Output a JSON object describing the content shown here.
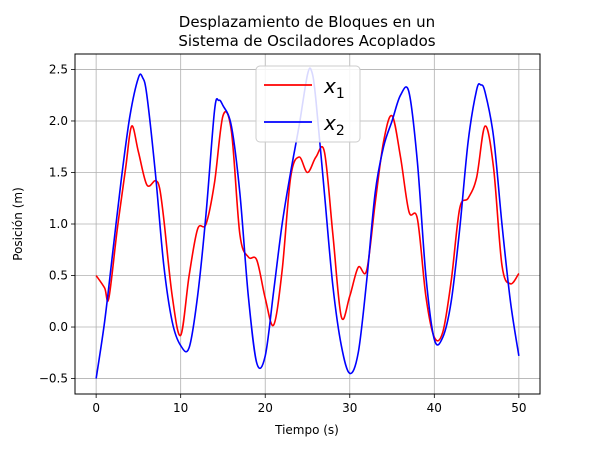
{
  "chart_data": {
    "type": "line",
    "title_lines": [
      "Desplazamiento de Bloques en un",
      "Sistema de Osciladores Acoplados"
    ],
    "xlabel": "Tiempo (s)",
    "ylabel": "Posición (m)",
    "xlim": [
      -2.5,
      52.5
    ],
    "ylim": [
      -0.65,
      2.65
    ],
    "xticks": [
      0,
      10,
      20,
      30,
      40,
      50
    ],
    "xtick_labels": [
      "0",
      "10",
      "20",
      "30",
      "40",
      "50"
    ],
    "yticks": [
      -0.5,
      0.0,
      0.5,
      1.0,
      1.5,
      2.0,
      2.5
    ],
    "ytick_labels": [
      "−0.5",
      "0.0",
      "0.5",
      "1.0",
      "1.5",
      "2.0",
      "2.5"
    ],
    "grid": true,
    "legend_placement": "top-center",
    "series": [
      {
        "name": "x",
        "name_sub": "1",
        "color": "#ff0000",
        "x": [
          0,
          1,
          1.5,
          2.5,
          3.5,
          4.2,
          5,
          6,
          7,
          7.5,
          8,
          9,
          10,
          11,
          12,
          13,
          14,
          15,
          16,
          17,
          18,
          19,
          20,
          21,
          22,
          23,
          24,
          25,
          26,
          27,
          28,
          29,
          30,
          31,
          32,
          33,
          34,
          35,
          36,
          37,
          38,
          39,
          40,
          41,
          42,
          43,
          44,
          45,
          46,
          47,
          48,
          49,
          50
        ],
        "y": [
          0.5,
          0.38,
          0.28,
          0.95,
          1.55,
          1.95,
          1.7,
          1.38,
          1.42,
          1.35,
          1.05,
          0.3,
          -0.08,
          0.5,
          0.95,
          1.0,
          1.4,
          2.05,
          1.9,
          0.9,
          0.68,
          0.65,
          0.28,
          0.02,
          0.55,
          1.45,
          1.65,
          1.5,
          1.65,
          1.7,
          0.9,
          0.1,
          0.3,
          0.58,
          0.55,
          1.2,
          1.8,
          2.05,
          1.65,
          1.12,
          1.05,
          0.3,
          -0.1,
          -0.05,
          0.45,
          1.15,
          1.25,
          1.45,
          1.95,
          1.55,
          0.6,
          0.42,
          0.52
        ]
      },
      {
        "name": "x",
        "name_sub": "2",
        "color": "#0000ff",
        "x": [
          0,
          1,
          2,
          3,
          4,
          5,
          5.5,
          6,
          7,
          8,
          9,
          10,
          11,
          12,
          13,
          14,
          14.5,
          15,
          16,
          17,
          18,
          19,
          20,
          21,
          22,
          23,
          24,
          25,
          25.5,
          26,
          27,
          28,
          29,
          30,
          31,
          32,
          33,
          34,
          35,
          36,
          37,
          38,
          39,
          40,
          41,
          42,
          43,
          44,
          45,
          45.5,
          46,
          47,
          48,
          49,
          50
        ],
        "y": [
          -0.5,
          0.05,
          0.75,
          1.45,
          2.05,
          2.42,
          2.42,
          2.25,
          1.5,
          0.6,
          0.05,
          -0.18,
          -0.2,
          0.3,
          1.1,
          2.1,
          2.2,
          2.15,
          1.95,
          1.3,
          0.3,
          -0.35,
          -0.28,
          0.35,
          1.0,
          1.5,
          1.95,
          2.45,
          2.48,
          2.2,
          1.3,
          0.4,
          -0.18,
          -0.45,
          -0.25,
          0.45,
          1.3,
          1.75,
          2.0,
          2.25,
          2.28,
          1.6,
          0.5,
          -0.12,
          -0.1,
          0.25,
          0.95,
          1.8,
          2.3,
          2.35,
          2.28,
          1.85,
          1.0,
          0.25,
          -0.28
        ]
      }
    ]
  }
}
